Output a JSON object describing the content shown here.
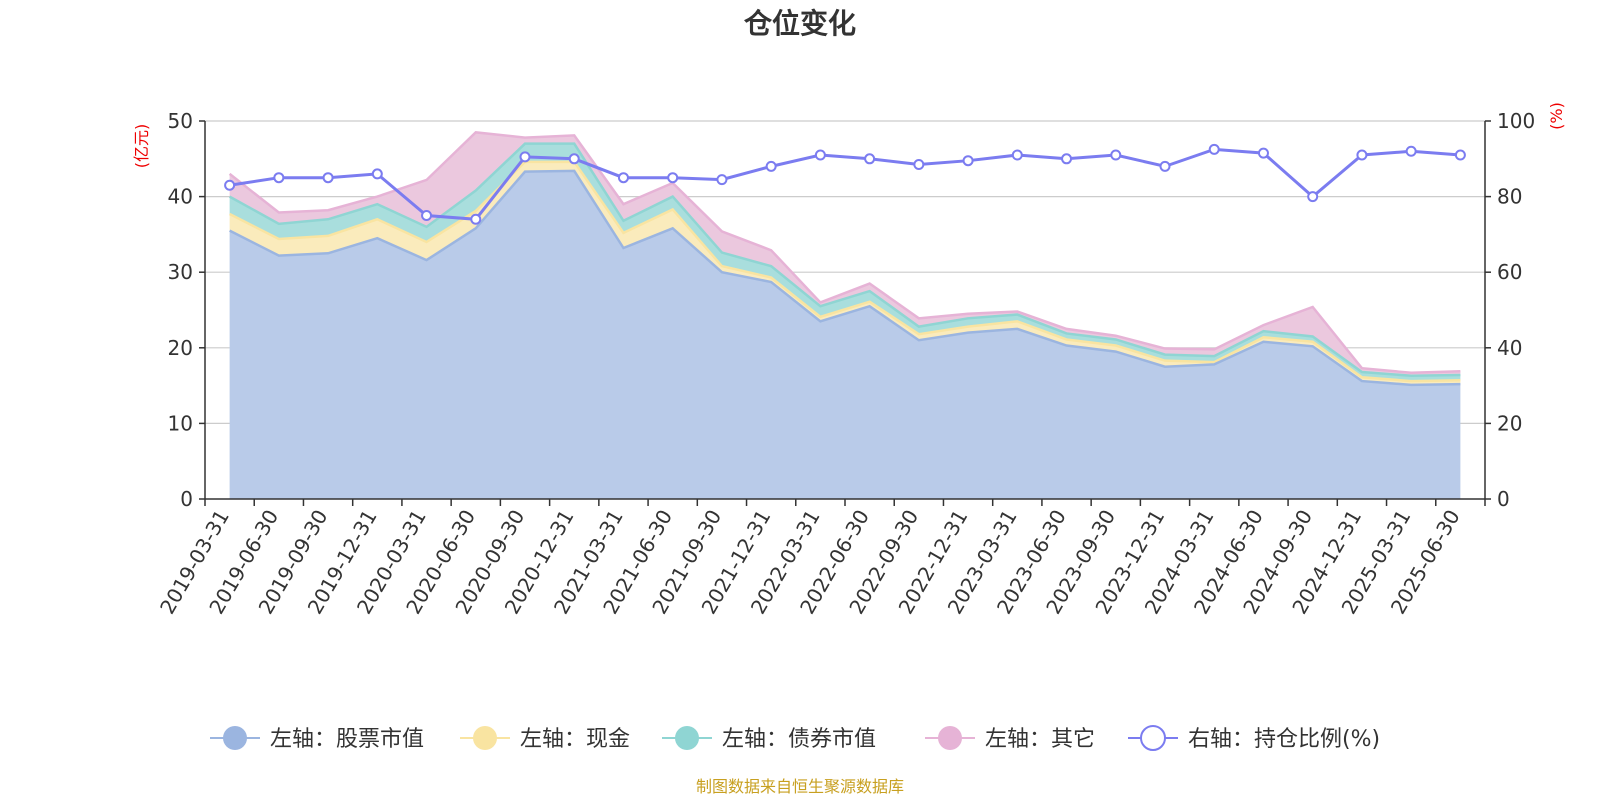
{
  "chart_data": {
    "type": "area",
    "title": "仓位变化",
    "left_axis": {
      "unit": "(亿元)",
      "range": [
        0,
        50
      ],
      "ticks": [
        0,
        10,
        20,
        30,
        40,
        50
      ]
    },
    "right_axis": {
      "unit": "(%)",
      "range": [
        0,
        100
      ],
      "ticks": [
        0,
        20,
        40,
        60,
        80,
        100
      ]
    },
    "categories": [
      "2019-03-31",
      "2019-06-30",
      "2019-09-30",
      "2019-12-31",
      "2020-03-31",
      "2020-06-30",
      "2020-09-30",
      "2020-12-31",
      "2021-03-31",
      "2021-06-30",
      "2021-09-30",
      "2021-12-31",
      "2022-03-31",
      "2022-06-30",
      "2022-09-30",
      "2022-12-31",
      "2023-03-31",
      "2023-06-30",
      "2023-09-30",
      "2023-12-31",
      "2024-03-31",
      "2024-06-30",
      "2024-09-30",
      "2024-12-31",
      "2025-03-31",
      "2025-06-30"
    ],
    "series": [
      {
        "name": "左轴：股票市值",
        "axis": "left",
        "color": "#9bb5e0",
        "fill": "#b9cbe9",
        "values": [
          35.5,
          32.2,
          32.5,
          34.5,
          31.6,
          35.8,
          43.3,
          43.4,
          33.2,
          35.8,
          30.0,
          28.7,
          23.5,
          25.5,
          21.0,
          22.0,
          22.5,
          20.3,
          19.5,
          17.5,
          17.8,
          20.8,
          20.2,
          15.6,
          15.1,
          15.2
        ]
      },
      {
        "name": "左轴：现金",
        "axis": "left",
        "color": "#f9e4a1",
        "fill": "#faebbc",
        "values": [
          2.2,
          2.2,
          2.3,
          2.5,
          2.4,
          2.3,
          1.3,
          1.2,
          2.0,
          2.5,
          0.8,
          0.6,
          0.6,
          0.6,
          0.8,
          0.8,
          1.0,
          0.8,
          0.8,
          0.8,
          0.3,
          0.6,
          0.6,
          0.5,
          0.5,
          0.5
        ]
      },
      {
        "name": "左轴：债券市值",
        "axis": "left",
        "color": "#8fd5d3",
        "fill": "#a9dedd",
        "values": [
          2.3,
          2.0,
          2.2,
          2.0,
          2.0,
          2.7,
          2.4,
          2.4,
          1.6,
          1.7,
          1.8,
          1.5,
          1.4,
          1.4,
          1.0,
          1.1,
          0.9,
          0.8,
          0.8,
          0.8,
          0.8,
          0.8,
          0.7,
          0.7,
          0.7,
          0.7
        ]
      },
      {
        "name": "左轴：其它",
        "axis": "left",
        "color": "#e6b3d6",
        "fill": "#ebc8de",
        "values": [
          3.0,
          1.5,
          1.2,
          1.0,
          6.2,
          7.7,
          0.8,
          1.1,
          2.2,
          1.8,
          2.8,
          2.1,
          0.5,
          1.0,
          1.1,
          0.6,
          0.4,
          0.6,
          0.5,
          0.8,
          0.9,
          0.8,
          3.9,
          0.5,
          0.4,
          0.5
        ]
      },
      {
        "name": "右轴：持仓比例(%)",
        "axis": "right",
        "color": "#7b7cf0",
        "values": [
          83,
          85,
          85,
          86,
          75,
          74,
          90.5,
          90,
          85,
          85,
          84.5,
          88,
          91,
          90,
          88.5,
          89.5,
          91,
          90,
          91,
          88,
          92.5,
          91.5,
          80,
          91,
          92,
          91
        ]
      }
    ],
    "source": "制图数据来自恒生聚源数据库"
  }
}
